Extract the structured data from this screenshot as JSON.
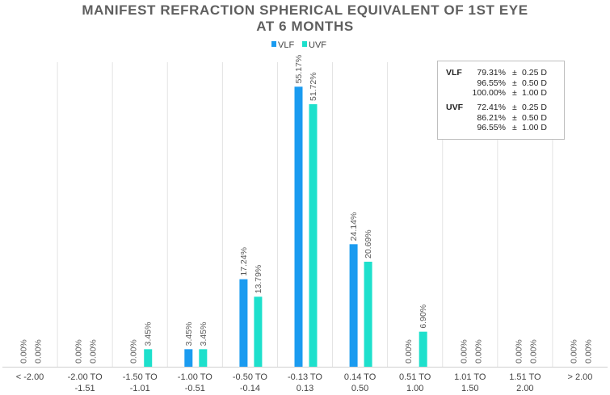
{
  "chart_data": {
    "type": "bar",
    "title": [
      "MANIFEST REFRACTION SPHERICAL EQUIVALENT OF 1ST EYE",
      "AT 6 MONTHS"
    ],
    "xlabel": "",
    "ylabel": "",
    "ylim": [
      0,
      60
    ],
    "grid": "vertical",
    "legend_position": "top-center",
    "categories": [
      [
        "< -2.00"
      ],
      [
        "-2.00 TO",
        "-1.51"
      ],
      [
        "-1.50 TO",
        "-1.01"
      ],
      [
        "-1.00 TO",
        "-0.51"
      ],
      [
        "-0.50 TO",
        "-0.14"
      ],
      [
        "-0.13 TO",
        "0.13"
      ],
      [
        "0.14 TO",
        "0.50"
      ],
      [
        "0.51 TO",
        "1.00"
      ],
      [
        "1.01 TO",
        "1.50"
      ],
      [
        "1.51 TO",
        "2.00"
      ],
      [
        "> 2.00"
      ]
    ],
    "series": [
      {
        "name": "VLF",
        "color": "#1a9bf0",
        "values": [
          0,
          0,
          0,
          3.45,
          17.24,
          55.17,
          24.14,
          0,
          0,
          0,
          0
        ],
        "labels": [
          "0.00%",
          "0.00%",
          "0.00%",
          "3.45%",
          "17.24%",
          "55.17%",
          "24.14%",
          "0.00%",
          "0.00%",
          "0.00%",
          "0.00%"
        ]
      },
      {
        "name": "UVF",
        "color": "#1de0cc",
        "values": [
          0,
          0,
          3.45,
          3.45,
          13.79,
          51.72,
          20.69,
          6.9,
          0,
          0,
          0
        ],
        "labels": [
          "0.00%",
          "0.00%",
          "3.45%",
          "3.45%",
          "13.79%",
          "51.72%",
          "20.69%",
          "6.90%",
          "0.00%",
          "0.00%",
          "0.00%"
        ]
      }
    ],
    "stats_box": [
      {
        "name": "VLF",
        "rows": [
          {
            "pct": "79.31%",
            "pm": "±",
            "tol": "0.25 D"
          },
          {
            "pct": "96.55%",
            "pm": "±",
            "tol": "0.50 D"
          },
          {
            "pct": "100.00%",
            "pm": "±",
            "tol": "1.00 D"
          }
        ]
      },
      {
        "name": "UVF",
        "rows": [
          {
            "pct": "72.41%",
            "pm": "±",
            "tol": "0.25 D"
          },
          {
            "pct": "86.21%",
            "pm": "±",
            "tol": "0.50 D"
          },
          {
            "pct": "96.55%",
            "pm": "±",
            "tol": "1.00 D"
          }
        ]
      }
    ]
  }
}
